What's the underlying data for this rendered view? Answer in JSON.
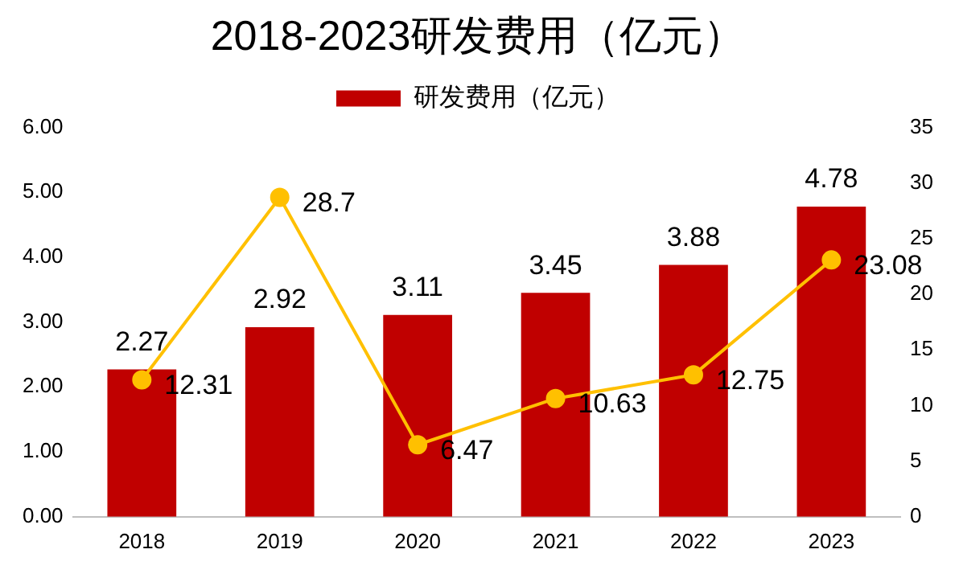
{
  "chart_data": {
    "type": "bar",
    "title": "2018-2023研发费用（亿元）",
    "categories": [
      "2018",
      "2019",
      "2020",
      "2021",
      "2022",
      "2023"
    ],
    "series": [
      {
        "name": "研发费用（亿元）",
        "color": "#c00000",
        "values": [
          2.27,
          2.92,
          3.11,
          3.45,
          3.88,
          4.78
        ]
      },
      {
        "type": "line",
        "axis": "y2",
        "color": "#ffc000",
        "values": [
          12.31,
          28.7,
          6.47,
          10.63,
          12.75,
          23.08
        ]
      }
    ],
    "ylim": [
      0,
      6
    ],
    "yticks": [
      {
        "value": 0,
        "label": "0.00"
      },
      {
        "value": 1,
        "label": "1.00"
      },
      {
        "value": 2,
        "label": "2.00"
      },
      {
        "value": 3,
        "label": "3.00"
      },
      {
        "value": 4,
        "label": "4.00"
      },
      {
        "value": 5,
        "label": "5.00"
      },
      {
        "value": 6,
        "label": "6.00"
      }
    ],
    "y2lim": [
      0,
      35
    ],
    "y2ticks": [
      0,
      5,
      10,
      15,
      20,
      25,
      30,
      35
    ],
    "data_labels": true,
    "legend": "top",
    "grid": false,
    "marker": "circle",
    "line_style": "solid"
  }
}
